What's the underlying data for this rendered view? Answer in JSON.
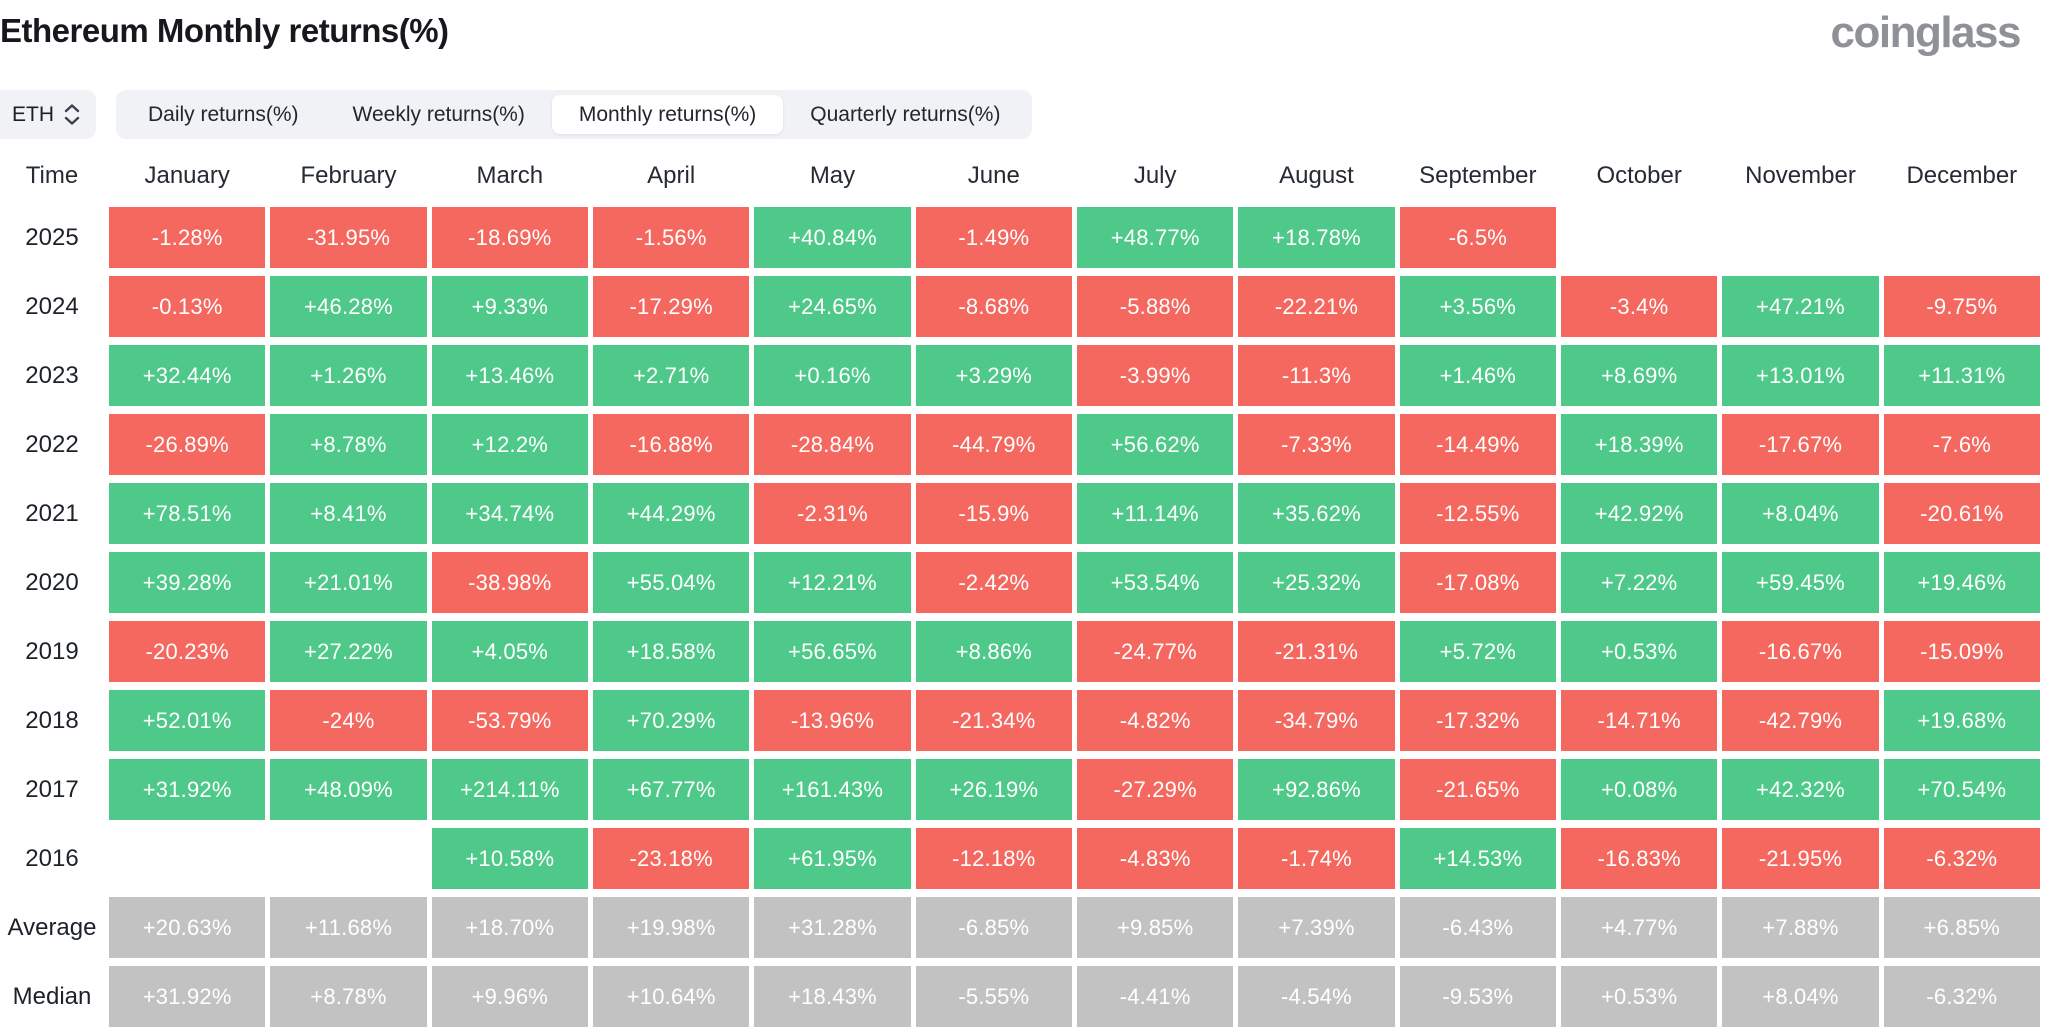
{
  "page": {
    "title": "Ethereum Monthly returns(%)",
    "brand": "coinglass"
  },
  "controls": {
    "symbol_select": {
      "value": "ETH"
    },
    "tabs": [
      {
        "label": "Daily returns(%)",
        "active": false
      },
      {
        "label": "Weekly returns(%)",
        "active": false
      },
      {
        "label": "Monthly returns(%)",
        "active": true
      },
      {
        "label": "Quarterly returns(%)",
        "active": false
      }
    ]
  },
  "chart_data": {
    "type": "heatmap",
    "title": "Ethereum Monthly returns(%)",
    "columns": [
      "Time",
      "January",
      "February",
      "March",
      "April",
      "May",
      "June",
      "July",
      "August",
      "September",
      "October",
      "November",
      "December"
    ],
    "legend_position": "none",
    "colors": {
      "positive": "#4fc98a",
      "negative": "#f5685f",
      "summary": "#c2c2c2",
      "cell_text": "#ffffff"
    },
    "rows": [
      {
        "label": "2025",
        "summary": false,
        "cells": [
          "-1.28%",
          "-31.95%",
          "-18.69%",
          "-1.56%",
          "+40.84%",
          "-1.49%",
          "+48.77%",
          "+18.78%",
          "-6.5%",
          "",
          "",
          ""
        ]
      },
      {
        "label": "2024",
        "summary": false,
        "cells": [
          "-0.13%",
          "+46.28%",
          "+9.33%",
          "-17.29%",
          "+24.65%",
          "-8.68%",
          "-5.88%",
          "-22.21%",
          "+3.56%",
          "-3.4%",
          "+47.21%",
          "-9.75%"
        ]
      },
      {
        "label": "2023",
        "summary": false,
        "cells": [
          "+32.44%",
          "+1.26%",
          "+13.46%",
          "+2.71%",
          "+0.16%",
          "+3.29%",
          "-3.99%",
          "-11.3%",
          "+1.46%",
          "+8.69%",
          "+13.01%",
          "+11.31%"
        ]
      },
      {
        "label": "2022",
        "summary": false,
        "cells": [
          "-26.89%",
          "+8.78%",
          "+12.2%",
          "-16.88%",
          "-28.84%",
          "-44.79%",
          "+56.62%",
          "-7.33%",
          "-14.49%",
          "+18.39%",
          "-17.67%",
          "-7.6%"
        ]
      },
      {
        "label": "2021",
        "summary": false,
        "cells": [
          "+78.51%",
          "+8.41%",
          "+34.74%",
          "+44.29%",
          "-2.31%",
          "-15.9%",
          "+11.14%",
          "+35.62%",
          "-12.55%",
          "+42.92%",
          "+8.04%",
          "-20.61%"
        ]
      },
      {
        "label": "2020",
        "summary": false,
        "cells": [
          "+39.28%",
          "+21.01%",
          "-38.98%",
          "+55.04%",
          "+12.21%",
          "-2.42%",
          "+53.54%",
          "+25.32%",
          "-17.08%",
          "+7.22%",
          "+59.45%",
          "+19.46%"
        ]
      },
      {
        "label": "2019",
        "summary": false,
        "cells": [
          "-20.23%",
          "+27.22%",
          "+4.05%",
          "+18.58%",
          "+56.65%",
          "+8.86%",
          "-24.77%",
          "-21.31%",
          "+5.72%",
          "+0.53%",
          "-16.67%",
          "-15.09%"
        ]
      },
      {
        "label": "2018",
        "summary": false,
        "cells": [
          "+52.01%",
          "-24%",
          "-53.79%",
          "+70.29%",
          "-13.96%",
          "-21.34%",
          "-4.82%",
          "-34.79%",
          "-17.32%",
          "-14.71%",
          "-42.79%",
          "+19.68%"
        ]
      },
      {
        "label": "2017",
        "summary": false,
        "cells": [
          "+31.92%",
          "+48.09%",
          "+214.11%",
          "+67.77%",
          "+161.43%",
          "+26.19%",
          "-27.29%",
          "+92.86%",
          "-21.65%",
          "+0.08%",
          "+42.32%",
          "+70.54%"
        ]
      },
      {
        "label": "2016",
        "summary": false,
        "cells": [
          "",
          "",
          "+10.58%",
          "-23.18%",
          "+61.95%",
          "-12.18%",
          "-4.83%",
          "-1.74%",
          "+14.53%",
          "-16.83%",
          "-21.95%",
          "-6.32%"
        ]
      },
      {
        "label": "Average",
        "summary": true,
        "cells": [
          "+20.63%",
          "+11.68%",
          "+18.70%",
          "+19.98%",
          "+31.28%",
          "-6.85%",
          "+9.85%",
          "+7.39%",
          "-6.43%",
          "+4.77%",
          "+7.88%",
          "+6.85%"
        ]
      },
      {
        "label": "Median",
        "summary": true,
        "cells": [
          "+31.92%",
          "+8.78%",
          "+9.96%",
          "+10.64%",
          "+18.43%",
          "-5.55%",
          "-4.41%",
          "-4.54%",
          "-9.53%",
          "+0.53%",
          "+8.04%",
          "-6.32%"
        ]
      }
    ]
  }
}
